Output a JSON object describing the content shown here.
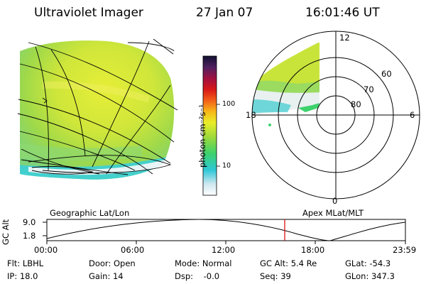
{
  "header": {
    "instrument": "Ultraviolet Imager",
    "date": "27 Jan 07",
    "time": "16:01:46 UT"
  },
  "colorbar": {
    "unit_label": "photon cm⁻²s⁻¹",
    "ticks": [
      "100",
      "10"
    ],
    "scale": "log"
  },
  "polar_plot": {
    "mlt_labels": [
      "12",
      "18",
      "6",
      "0"
    ],
    "lat_labels": [
      "60",
      "70",
      "80"
    ]
  },
  "timeline": {
    "left_title": "Geographic Lat/Lon",
    "right_title": "Apex MLat/MLT",
    "y_axis_label": "GC Alt",
    "y_ticks": [
      "9.0",
      "1.8"
    ],
    "x_ticks": [
      "00:00",
      "06:00",
      "12:00",
      "18:00",
      "23:59"
    ],
    "current_marker_color": "#d40000"
  },
  "footer": {
    "flt": "Flt: LBHL",
    "ip": "IP: 18.0",
    "door": "Door: Open",
    "gain": "Gain: 14",
    "mode": "Mode: Normal",
    "dsp": "Dsp:    -0.0",
    "gc_alt": "GC Alt: 5.4 Re",
    "seq": "Seq: 39",
    "glat": "GLat: -54.3",
    "glon": "GLon: 347.3"
  }
}
